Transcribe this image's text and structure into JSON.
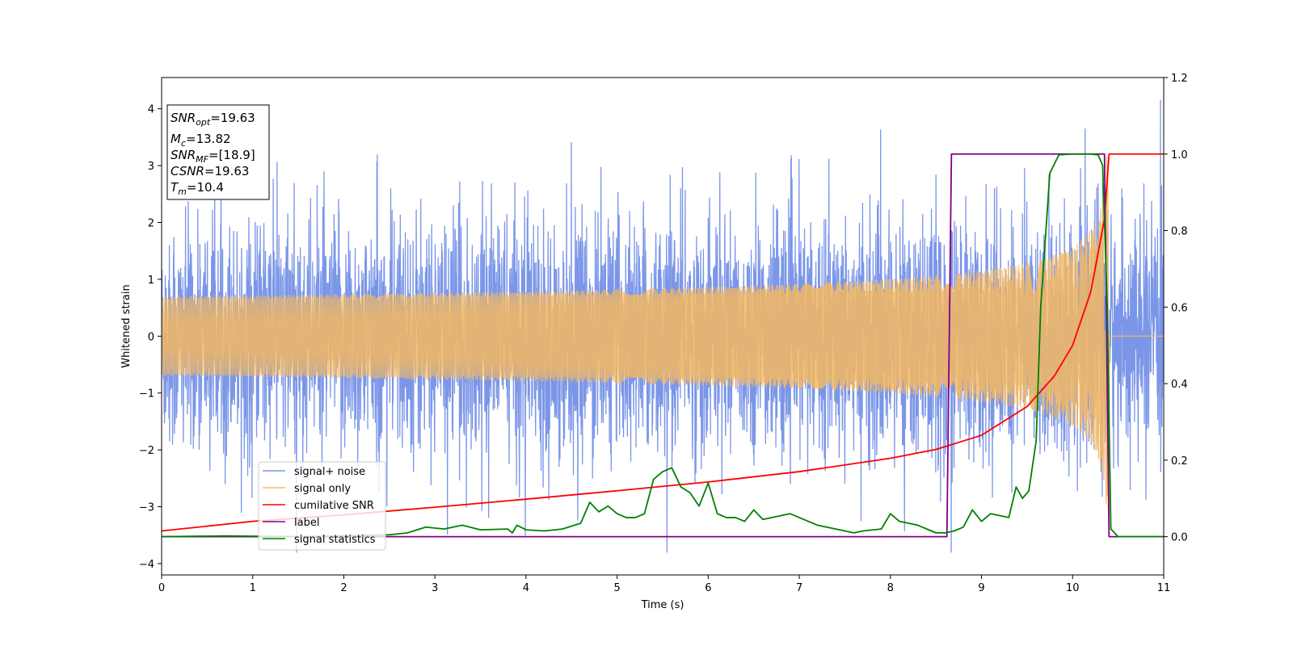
{
  "chart_data": {
    "type": "line",
    "xlabel": "Time (s)",
    "ylabel": "Whitened strain",
    "xlim": [
      0,
      11
    ],
    "ylim_left": [
      -4.2,
      4.55
    ],
    "ylim_right": [
      -0.1,
      1.2
    ],
    "xticks": [
      "0",
      "1",
      "2",
      "3",
      "4",
      "5",
      "6",
      "7",
      "8",
      "9",
      "10",
      "11"
    ],
    "yticks_left": [
      "−4",
      "−3",
      "−2",
      "−1",
      "0",
      "1",
      "2",
      "3",
      "4"
    ],
    "yticks_right": [
      "0.0",
      "0.2",
      "0.4",
      "0.6",
      "0.8",
      "1.0",
      "1.2"
    ],
    "grid": false,
    "legend_position": "lower-left",
    "info_box": {
      "snr_opt": {
        "main": "SNR",
        "sub": "opt",
        "value": "=19.63"
      },
      "mc": {
        "main": "M",
        "sub": "c",
        "value": "=13.82"
      },
      "snr_mf": {
        "main": "SNR",
        "sub": "MF",
        "value": "=[18.9]"
      },
      "csnr": {
        "main": "CSNR",
        "value": "=19.63"
      },
      "tm": {
        "main": "T",
        "sub": "m",
        "value": "=10.4"
      }
    },
    "series": [
      {
        "name": "signal+ noise",
        "color": "#7b96e8",
        "axis": "left",
        "description_values": {
          "noise_std": 0.95,
          "spike_max": 4.15,
          "spike_min": -3.8
        }
      },
      {
        "name": "signal only",
        "color": "#f5b860",
        "axis": "left",
        "chirp": {
          "merger_time": 10.4,
          "peak_amplitude": 3.2,
          "start_amplitude": 0.05
        }
      },
      {
        "name": "cumilative SNR",
        "color": "#ff0000",
        "axis": "right",
        "x": [
          0,
          1,
          2,
          3,
          4,
          5,
          6,
          7,
          8,
          8.5,
          9,
          9.5,
          9.8,
          10.0,
          10.2,
          10.35,
          10.4,
          10.42,
          11
        ],
        "y": [
          0.015,
          0.04,
          0.057,
          0.077,
          0.098,
          0.12,
          0.143,
          0.17,
          0.205,
          0.228,
          0.265,
          0.34,
          0.42,
          0.5,
          0.64,
          0.83,
          1.0,
          1.0,
          1.0
        ]
      },
      {
        "name": "label",
        "color": "#800080",
        "axis": "right",
        "x": [
          0,
          8.62,
          8.67,
          10.35,
          10.4,
          11
        ],
        "y": [
          0.0,
          0.0,
          1.0,
          1.0,
          0.0,
          0.0
        ]
      },
      {
        "name": "signal statistics",
        "color": "#008000",
        "axis": "right",
        "x": [
          0,
          0.7,
          1.5,
          2.5,
          2.7,
          2.9,
          3.1,
          3.3,
          3.5,
          3.8,
          3.85,
          3.9,
          4.0,
          4.2,
          4.4,
          4.6,
          4.7,
          4.8,
          4.9,
          5.0,
          5.1,
          5.2,
          5.3,
          5.4,
          5.5,
          5.6,
          5.7,
          5.8,
          5.9,
          6.0,
          6.1,
          6.2,
          6.3,
          6.4,
          6.5,
          6.6,
          6.7,
          6.9,
          7.0,
          7.2,
          7.4,
          7.6,
          7.7,
          7.9,
          8.0,
          8.1,
          8.3,
          8.5,
          8.6,
          8.7,
          8.8,
          8.9,
          9.0,
          9.1,
          9.2,
          9.3,
          9.38,
          9.45,
          9.52,
          9.6,
          9.65,
          9.75,
          9.85,
          10.0,
          10.2,
          10.28,
          10.33,
          10.38,
          10.42,
          10.5,
          11
        ],
        "y": [
          0.0,
          0.002,
          0.0,
          0.005,
          0.01,
          0.025,
          0.02,
          0.03,
          0.018,
          0.02,
          0.01,
          0.03,
          0.018,
          0.015,
          0.02,
          0.035,
          0.09,
          0.065,
          0.08,
          0.06,
          0.05,
          0.05,
          0.06,
          0.15,
          0.17,
          0.18,
          0.13,
          0.115,
          0.08,
          0.14,
          0.06,
          0.05,
          0.05,
          0.04,
          0.07,
          0.045,
          0.05,
          0.06,
          0.05,
          0.03,
          0.02,
          0.01,
          0.015,
          0.02,
          0.06,
          0.04,
          0.03,
          0.01,
          0.01,
          0.015,
          0.025,
          0.07,
          0.04,
          0.06,
          0.055,
          0.05,
          0.13,
          0.1,
          0.12,
          0.25,
          0.6,
          0.95,
          0.998,
          1.0,
          1.0,
          0.998,
          0.97,
          0.6,
          0.02,
          0.0,
          0.0
        ]
      }
    ]
  }
}
